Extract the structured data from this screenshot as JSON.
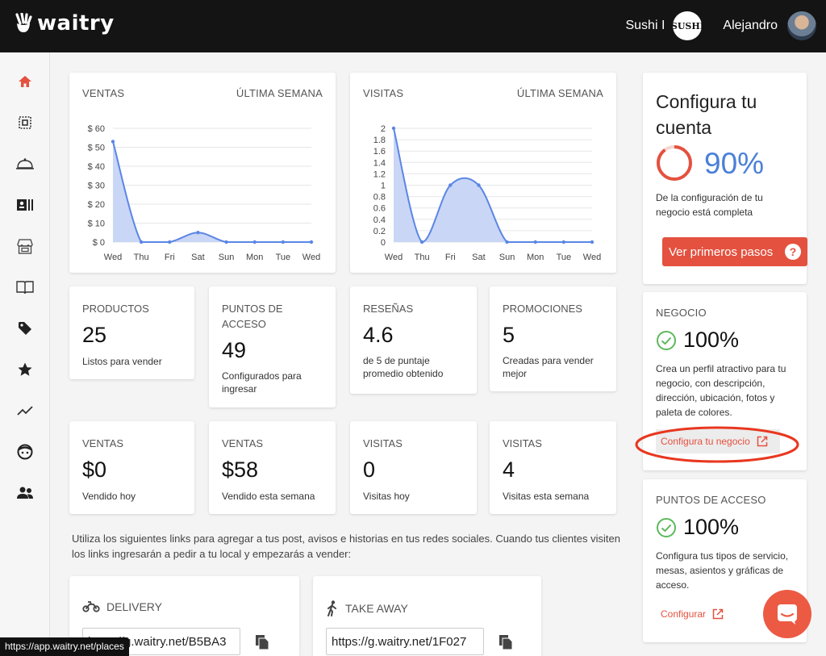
{
  "brand": {
    "name": "waitry"
  },
  "topbar": {
    "business_name": "Sushi I",
    "business_logo_text": "SUSHI",
    "user_name": "Alejandro"
  },
  "sidebar": {
    "items": [
      {
        "icon": "home-icon",
        "active": true
      },
      {
        "icon": "qr-code-icon"
      },
      {
        "icon": "cloche-icon"
      },
      {
        "icon": "orders-icon"
      },
      {
        "icon": "store-icon"
      },
      {
        "icon": "menu-book-icon"
      },
      {
        "icon": "tag-icon"
      },
      {
        "icon": "star-icon"
      },
      {
        "icon": "trending-icon"
      },
      {
        "icon": "face-icon"
      },
      {
        "icon": "people-icon"
      }
    ]
  },
  "sales_chart": {
    "title": "VENTAS",
    "period": "ÚLTIMA SEMANA"
  },
  "visits_chart": {
    "title": "VISITAS",
    "period": "ÚLTIMA SEMANA"
  },
  "chart_data": [
    {
      "type": "area",
      "title": "VENTAS",
      "categories": [
        "Wed",
        "Thu",
        "Fri",
        "Sat",
        "Sun",
        "Mon",
        "Tue",
        "Wed"
      ],
      "values": [
        53,
        0,
        0,
        5,
        0,
        0,
        0,
        0
      ],
      "yticks": [
        "$ 0",
        "$ 10",
        "$ 20",
        "$ 30",
        "$ 40",
        "$ 50",
        "$ 60"
      ],
      "ylim": [
        0,
        60
      ],
      "color": "#5b86e5",
      "fill": "#c9d6f5"
    },
    {
      "type": "area",
      "title": "VISITAS",
      "categories": [
        "Wed",
        "Thu",
        "Fri",
        "Sat",
        "Sun",
        "Mon",
        "Tue",
        "Wed"
      ],
      "values": [
        2,
        0,
        1,
        1,
        0,
        0,
        0,
        0
      ],
      "yticks": [
        "0",
        "0.2",
        "0.4",
        "0.6",
        "0.8",
        "1",
        "1.2",
        "1.4",
        "1.6",
        "1.8",
        "2"
      ],
      "ylim": [
        0,
        2
      ],
      "color": "#5b86e5",
      "fill": "#c9d6f5"
    }
  ],
  "stats_row1": [
    {
      "label": "PRODUCTOS",
      "value": "25",
      "desc": "Listos para vender"
    },
    {
      "label": "PUNTOS DE ACCESO",
      "value": "49",
      "desc": "Configurados para ingresar"
    },
    {
      "label": "RESEÑAS",
      "value": "4.6",
      "desc": "de 5 de puntaje promedio obtenido"
    },
    {
      "label": "PROMOCIONES",
      "value": "5",
      "desc": "Creadas para vender mejor"
    }
  ],
  "stats_row2": [
    {
      "label": "VENTAS",
      "value": "$0",
      "desc": "Vendido hoy"
    },
    {
      "label": "VENTAS",
      "value": "$58",
      "desc": "Vendido esta semana"
    },
    {
      "label": "VISITAS",
      "value": "0",
      "desc": "Visitas hoy"
    },
    {
      "label": "VISITAS",
      "value": "4",
      "desc": "Visitas esta semana"
    }
  ],
  "info_text": "Utiliza los siguientes links para agregar a tus post, avisos e historias en tus redes sociales. Cuando tus clientes visiten los links ingresarán a pedir a tu local y empezarás a vender:",
  "links": {
    "delivery": {
      "title": "DELIVERY",
      "url": "https://g.waitry.net/B5BA3"
    },
    "takeaway": {
      "title": "TAKE AWAY",
      "url": "https://g.waitry.net/1F027"
    }
  },
  "setup": {
    "title": "Configura tu cuenta",
    "percent": "90%",
    "progress": 0.9,
    "desc": "De la configuración de tu negocio está completa",
    "button": "Ver primeros pasos",
    "help": "?"
  },
  "negocio": {
    "title": "NEGOCIO",
    "percent": "100%",
    "desc": "Crea un perfil atractivo para tu negocio, con descripción, dirección, ubicación, fotos y paleta de colores.",
    "link": "Configura tu negocio"
  },
  "puntos": {
    "title": "PUNTOS DE ACCESO",
    "percent": "100%",
    "desc": "Configura tus tipos de servicio, mesas, asientos y gráficas de acceso.",
    "link": "Configurar"
  },
  "status_url": "https://app.waitry.net/places",
  "colors": {
    "accent": "#e4513f",
    "blue": "#4a80d8",
    "topbar": "#141414",
    "check": "#5cb85c"
  }
}
